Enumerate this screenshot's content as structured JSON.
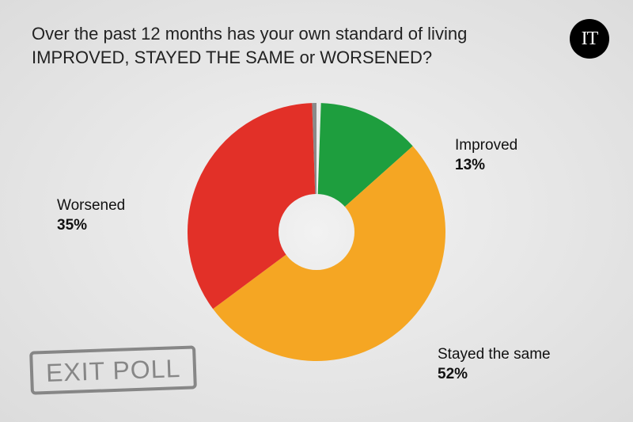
{
  "title": "Over the past 12 months has your own standard of living IMPROVED, STAYED THE SAME or WORSENED?",
  "logo_text": "IT",
  "stamp_text": "EXIT POLL",
  "chart": {
    "type": "donut",
    "start_angle_deg": 2,
    "inner_radius_ratio": 0.3,
    "background_color": "#eeeeee",
    "stroke_width": 0,
    "slices": [
      {
        "key": "improved",
        "label": "Improved",
        "value": 13,
        "color": "#1e9e3e"
      },
      {
        "key": "stayed_same",
        "label": "Stayed the same",
        "value": 52,
        "color": "#f5a623"
      },
      {
        "key": "worsened",
        "label": "Worsened",
        "value": 35,
        "color": "#e23028"
      }
    ],
    "sliver": {
      "angle_deg": 2,
      "color": "#8a8a8a"
    }
  },
  "labels": {
    "improved": {
      "name": "Improved",
      "value": "13%"
    },
    "stayed_same": {
      "name": "Stayed the same",
      "value": "52%"
    },
    "worsened": {
      "name": "Worsened",
      "value": "35%"
    }
  },
  "typography": {
    "title_fontsize": 22,
    "label_fontsize": 19,
    "stamp_fontsize": 32
  }
}
